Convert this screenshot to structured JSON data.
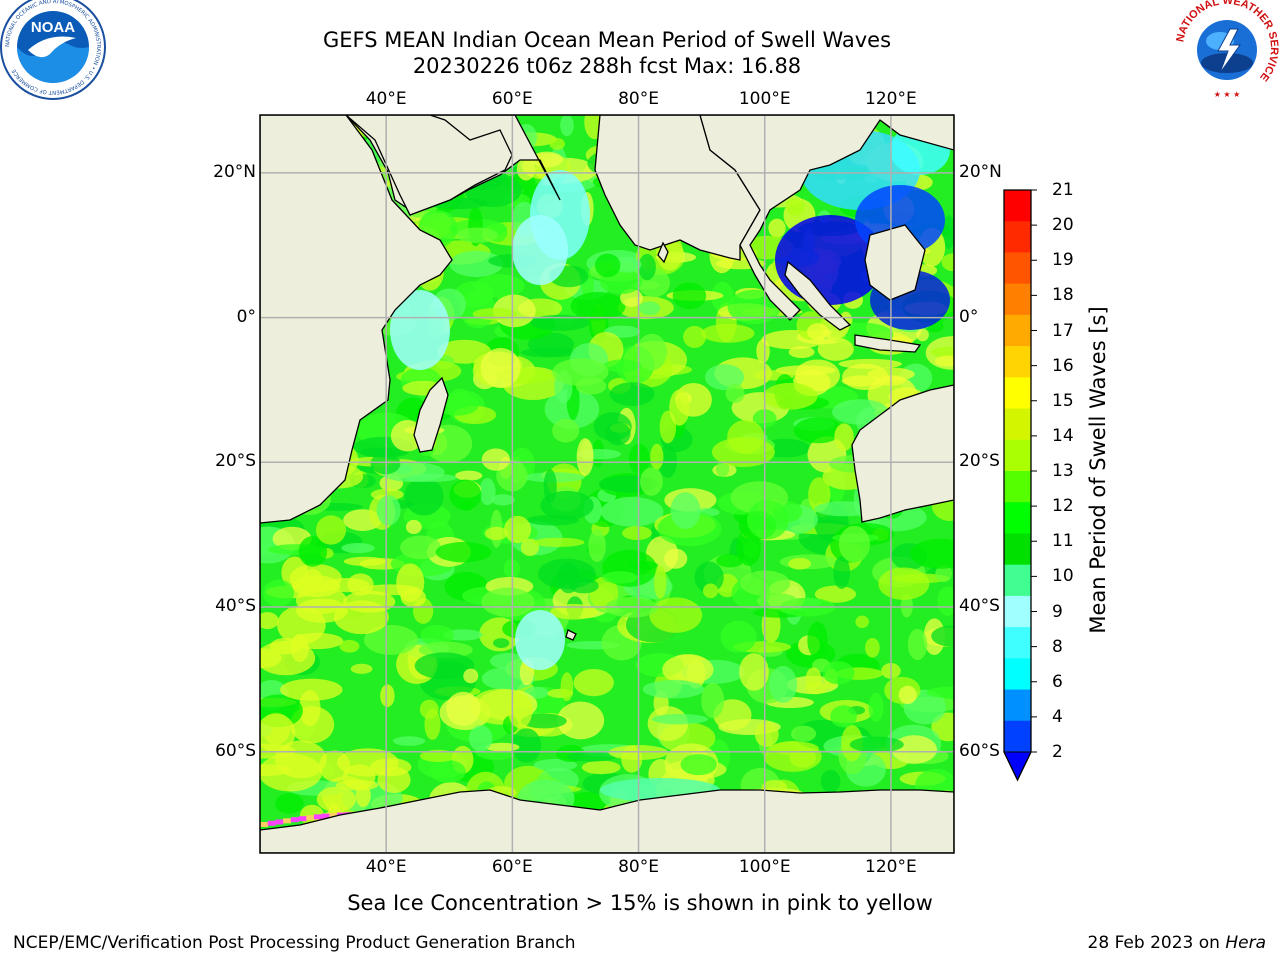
{
  "title": {
    "line1": "GEFS MEAN Indian Ocean Mean Period of Swell Waves",
    "line2": "20230226 t06z 288h fcst   Max: 16.88"
  },
  "axes": {
    "lon_labels": [
      "40°E",
      "60°E",
      "80°E",
      "100°E",
      "120°E"
    ],
    "lat_labels": [
      "20°N",
      "0°",
      "20°S",
      "40°S",
      "60°S"
    ],
    "lon_values": [
      40,
      60,
      80,
      100,
      120
    ],
    "lat_values": [
      20,
      0,
      -20,
      -40,
      -60
    ],
    "lon_range": [
      20,
      130
    ],
    "lat_range": [
      28,
      -74
    ]
  },
  "colorbar": {
    "label": "Mean Period of Swell Waves [s]",
    "ticks": [
      "21",
      "20",
      "19",
      "18",
      "17",
      "16",
      "15",
      "14",
      "13",
      "12",
      "11",
      "10",
      "9",
      "8",
      "6",
      "4",
      "2"
    ],
    "colors": [
      "#ff0000",
      "#ff2a00",
      "#ff5500",
      "#ff8000",
      "#ffaa00",
      "#ffd400",
      "#ffff00",
      "#d4f500",
      "#aaff00",
      "#55ff00",
      "#00ff00",
      "#00e000",
      "#40ff90",
      "#a0ffff",
      "#40ffff",
      "#00ffff",
      "#0090ff",
      "#0040ff"
    ],
    "under_color": "#0000ff"
  },
  "caption": "Sea Ice Concentration > 15% is shown in pink to yellow",
  "footer": {
    "left": "NCEP/EMC/Verification Post Processing Product Generation Branch",
    "date": "28 Feb 2023 on ",
    "host": "Hera"
  },
  "logos": {
    "noaa_text": "NOAA",
    "noaa_ring": "NATIONAL OCEANIC AND ATMOSPHERIC ADMINISTRATION • U.S. DEPARTMENT OF COMMERCE",
    "nws_ring": "NATIONAL WEATHER SERVICE"
  },
  "colors": {
    "ocean_base": "#22ee22",
    "land": "#eeeedd",
    "grid": "#b0b0b0",
    "sea_ice": "#ff40ff"
  }
}
